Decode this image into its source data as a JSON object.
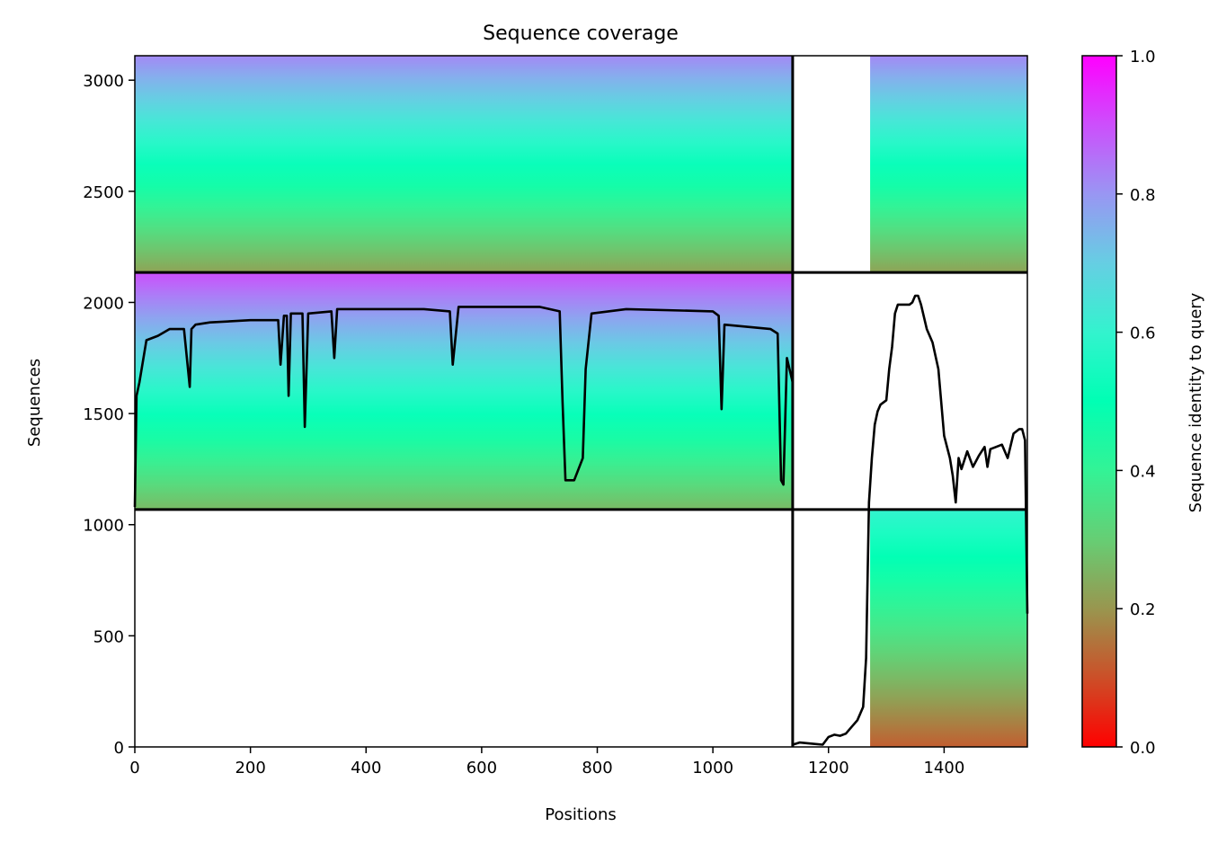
{
  "chart_data": {
    "type": "heatmap",
    "title": "Sequence coverage",
    "xlabel": "Positions",
    "ylabel": "Sequences",
    "xlim": [
      0,
      1544
    ],
    "ylim": [
      0,
      3110
    ],
    "xticks": [
      0,
      200,
      400,
      600,
      800,
      1000,
      1200,
      1400
    ],
    "yticks": [
      0,
      500,
      1000,
      1500,
      2000,
      2500,
      3000
    ],
    "grid": false,
    "colorbar": {
      "label": "Sequence identity to query",
      "colormap": "rainbow_r",
      "range": [
        0,
        1
      ],
      "ticks": [
        "0.0",
        "0.2",
        "0.4",
        "0.6",
        "0.8",
        "1.0"
      ]
    },
    "block_boundaries": {
      "x": [
        1138
      ],
      "y": [
        1068,
        2135
      ]
    },
    "blocks": [
      {
        "x": [
          0,
          1138
        ],
        "y": [
          2135,
          3110
        ],
        "identity_bottom": 0.22,
        "identity_top": 0.82
      },
      {
        "x": [
          1138,
          1544
        ],
        "y": [
          2135,
          3110
        ],
        "identity_bottom": 0.22,
        "identity_top": 0.82,
        "coverage_start": 1272
      },
      {
        "x": [
          0,
          1138
        ],
        "y": [
          1068,
          2135
        ],
        "identity_bottom": 0.26,
        "identity_top": 0.9
      },
      {
        "x": [
          0,
          1138
        ],
        "y": [
          0,
          1068
        ],
        "empty": true
      },
      {
        "x": [
          1138,
          1544
        ],
        "y": [
          1068,
          2135
        ],
        "empty": true
      },
      {
        "x": [
          1138,
          1544
        ],
        "y": [
          0,
          1068
        ],
        "identity_bottom": 0.12,
        "identity_top": 0.6,
        "coverage_start": 1272
      }
    ],
    "series": [
      {
        "type": "line",
        "color": "#000000",
        "x": [
          0,
          3,
          8,
          20,
          40,
          60,
          85,
          95,
          98,
          105,
          130,
          200,
          248,
          252,
          258,
          263,
          266,
          270,
          290,
          294,
          300,
          340,
          345,
          350,
          400,
          500,
          545,
          550,
          560,
          700,
          735,
          740,
          745,
          760,
          775,
          780,
          790,
          850,
          1000,
          1010,
          1015,
          1020,
          1100,
          1112,
          1118,
          1122,
          1128,
          1138
        ],
        "y": [
          1080,
          1580,
          1640,
          1830,
          1850,
          1880,
          1880,
          1620,
          1880,
          1900,
          1910,
          1920,
          1920,
          1720,
          1940,
          1940,
          1580,
          1950,
          1950,
          1440,
          1950,
          1960,
          1750,
          1970,
          1970,
          1970,
          1960,
          1720,
          1980,
          1980,
          1960,
          1550,
          1200,
          1200,
          1300,
          1700,
          1950,
          1970,
          1960,
          1940,
          1520,
          1900,
          1880,
          1860,
          1200,
          1180,
          1750,
          1640
        ]
      },
      {
        "type": "line",
        "color": "#000000",
        "x": [
          1138,
          1150,
          1170,
          1190,
          1200,
          1210,
          1220,
          1230,
          1240,
          1250,
          1260,
          1265,
          1270,
          1275,
          1280,
          1285,
          1290,
          1300,
          1305,
          1310,
          1315,
          1320,
          1330,
          1340,
          1345,
          1350,
          1355,
          1360,
          1370,
          1380,
          1390,
          1395,
          1400,
          1410,
          1415,
          1420,
          1425,
          1430,
          1440,
          1450,
          1460,
          1470,
          1475,
          1480,
          1490,
          1500,
          1510,
          1520,
          1530,
          1535,
          1540,
          1544
        ],
        "y": [
          10,
          20,
          15,
          10,
          45,
          55,
          50,
          60,
          90,
          120,
          180,
          400,
          1100,
          1300,
          1450,
          1510,
          1540,
          1560,
          1700,
          1800,
          1950,
          1990,
          1990,
          1990,
          2000,
          2030,
          2030,
          1990,
          1880,
          1820,
          1700,
          1550,
          1400,
          1300,
          1220,
          1100,
          1300,
          1250,
          1330,
          1260,
          1310,
          1350,
          1260,
          1340,
          1350,
          1360,
          1300,
          1410,
          1430,
          1430,
          1380,
          600
        ]
      }
    ]
  }
}
